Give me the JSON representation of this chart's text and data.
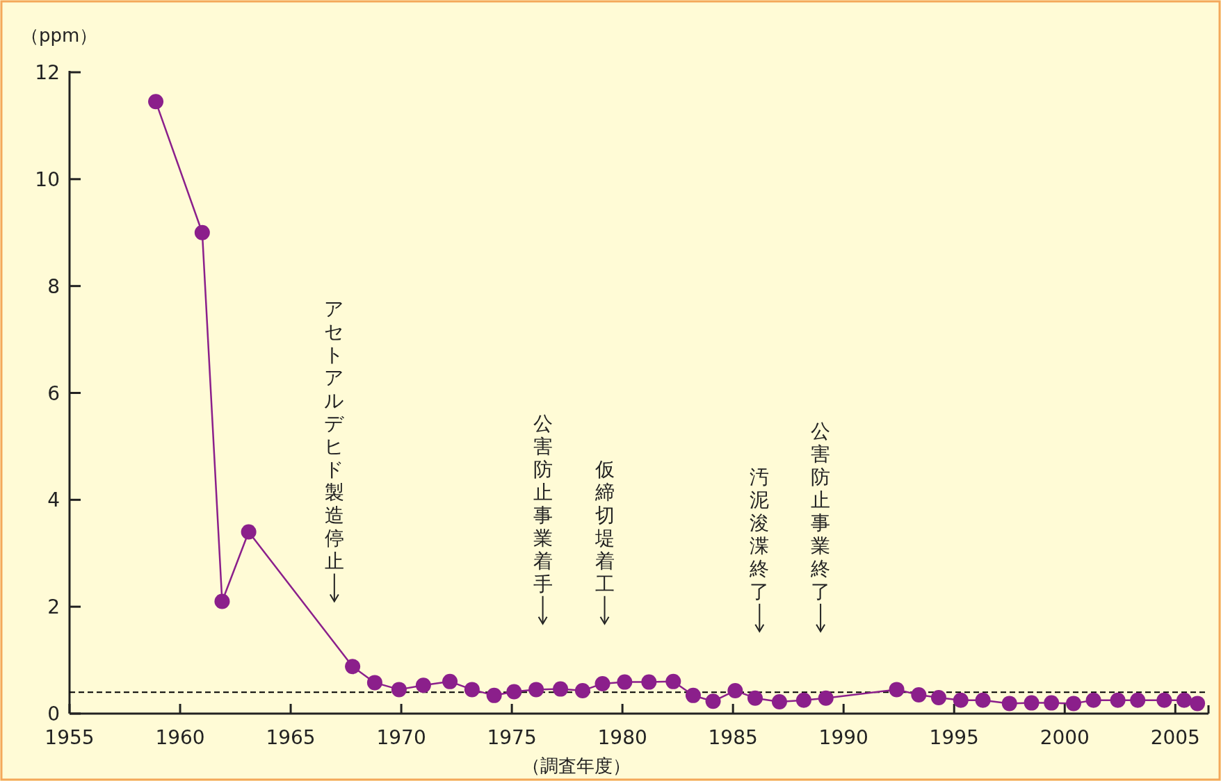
{
  "chart_data": {
    "type": "line",
    "xlabel": "（調査年度）",
    "ylabel": "（ppm）",
    "xlim": [
      1955,
      2006.5
    ],
    "ylim": [
      0,
      12
    ],
    "xticks": [
      1955,
      1960,
      1965,
      1970,
      1975,
      1980,
      1985,
      1990,
      1995,
      2000,
      2005
    ],
    "yticks": [
      0,
      2,
      4,
      6,
      8,
      10,
      12
    ],
    "marker": "circle",
    "line_style": "solid",
    "series": [
      {
        "color": "#8b1f8b",
        "x": [
          1958.9,
          1961.0,
          1961.9,
          1963.1,
          1967.8,
          1968.8,
          1969.9,
          1971.0,
          1972.2,
          1973.2,
          1974.2,
          1975.1,
          1976.1,
          1977.2,
          1978.2,
          1979.1,
          1980.1,
          1981.2,
          1982.3,
          1983.2,
          1984.1,
          1985.1,
          1986.0,
          1987.1,
          1988.2,
          1989.2,
          1992.4,
          1993.4,
          1994.3,
          1995.3,
          1996.3,
          1997.5,
          1998.5,
          1999.4,
          2000.4,
          2001.3,
          2002.4,
          2003.3,
          2004.5,
          2005.4,
          2006.0
        ],
        "values": [
          11.45,
          9.0,
          2.1,
          3.4,
          0.88,
          0.58,
          0.45,
          0.53,
          0.6,
          0.45,
          0.34,
          0.41,
          0.45,
          0.46,
          0.43,
          0.56,
          0.59,
          0.59,
          0.6,
          0.34,
          0.23,
          0.43,
          0.29,
          0.22,
          0.25,
          0.29,
          0.45,
          0.35,
          0.3,
          0.25,
          0.25,
          0.19,
          0.2,
          0.2,
          0.19,
          0.25,
          0.25,
          0.25,
          0.25,
          0.25,
          0.19
        ]
      }
    ],
    "ref_lines": [
      {
        "axis": "y",
        "value": 0.4,
        "color": "#000000",
        "line_style": "dashed"
      }
    ],
    "annotations": [
      "アセトアルデヒド製造停止",
      "公害防止事業着手",
      "仮締切堤着工",
      "汚泥浚渫終了",
      "公害防止事業終了"
    ]
  }
}
